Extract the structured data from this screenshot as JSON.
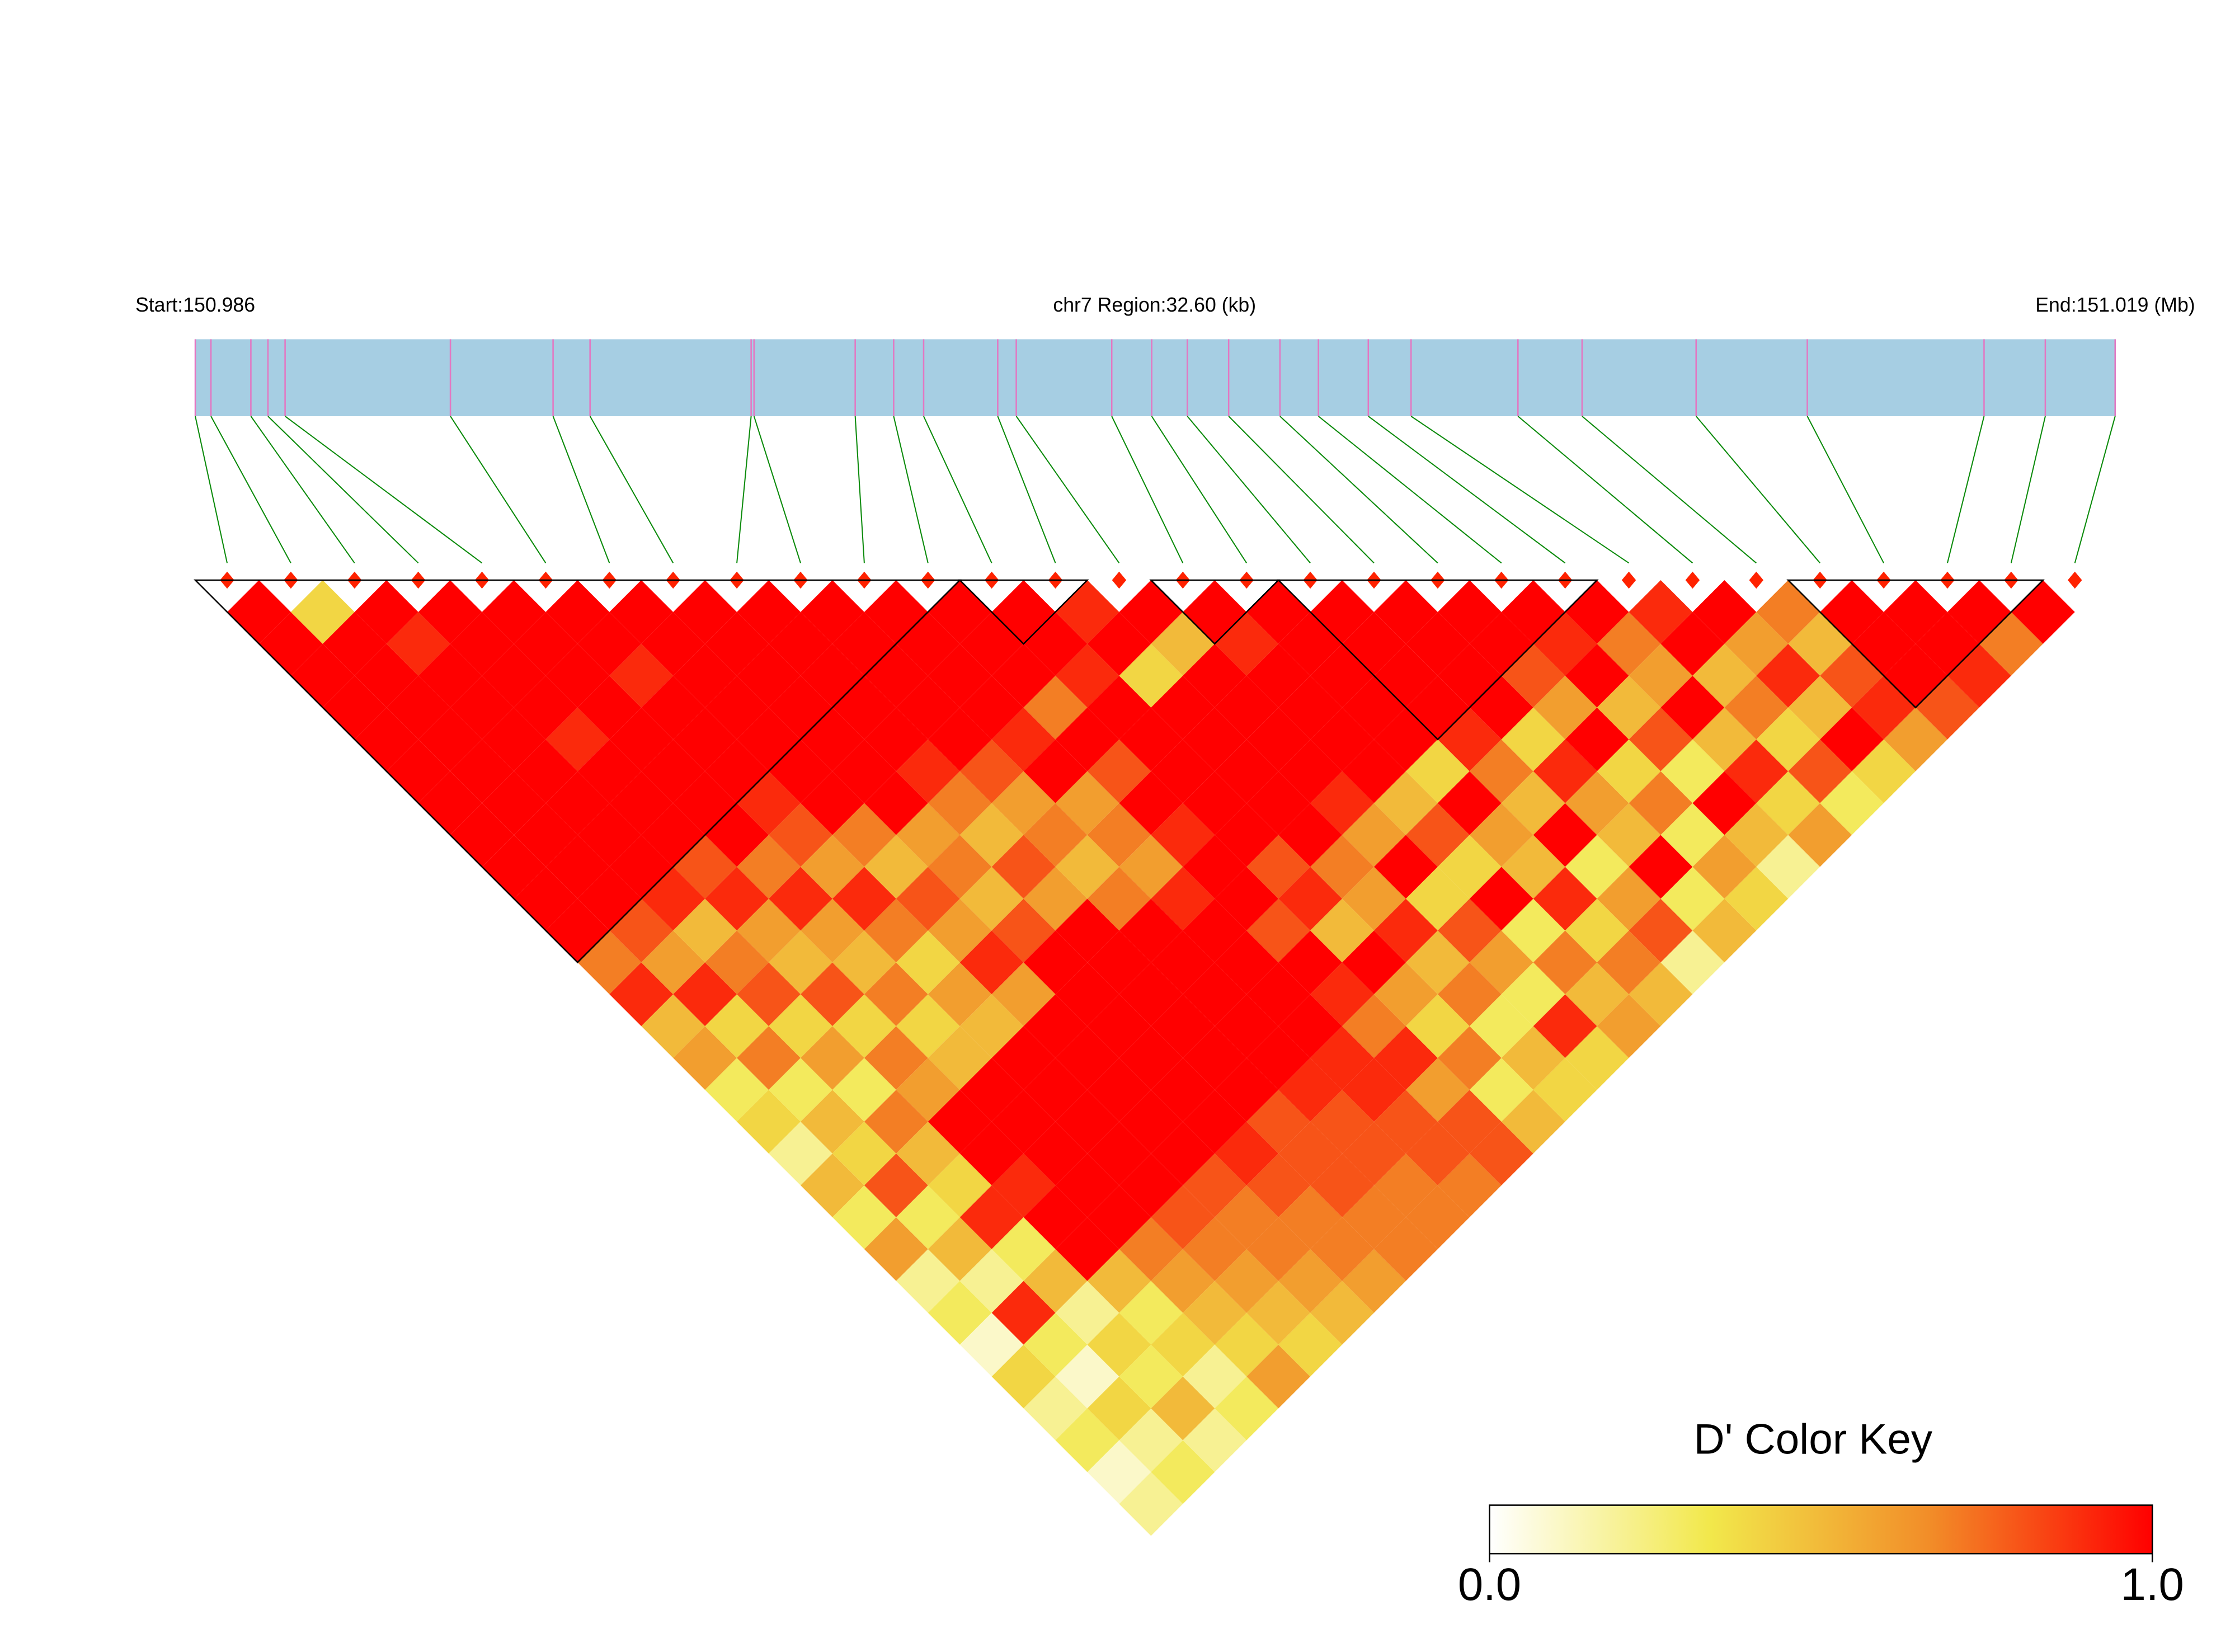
{
  "chart_data": {
    "type": "ld_heatmap",
    "start_label": "Start:150.986",
    "region_label": "chr7 Region:32.60 (kb)",
    "end_label": "End:151.019 (Mb)",
    "xlim": [
      0,
      32.6
    ],
    "positions_kb": [
      0,
      0.266,
      0.944,
      1.234,
      1.525,
      4.332,
      6.075,
      6.703,
      9.438,
      9.487,
      11.205,
      11.858,
      12.367,
      13.625,
      13.94,
      15.561,
      16.239,
      16.844,
      17.546,
      18.417,
      19.07,
      19.917,
      20.643,
      22.458,
      23.547,
      25.483,
      27.371,
      30.372,
      31.412,
      32.598
    ],
    "ld": [
      [
        1,
        1,
        1,
        1,
        1,
        1,
        1,
        1,
        1,
        1,
        1,
        0.7,
        0.9,
        0.5,
        0.6,
        0.3,
        0.4,
        0.2,
        0.5,
        0.3,
        0.6,
        0.2,
        0.3,
        0.1,
        0.4,
        0.2,
        0.3,
        0.1,
        0.2
      ],
      [
        0.4,
        1,
        1,
        1,
        1,
        1,
        1,
        1,
        1,
        1,
        0.8,
        0.6,
        0.9,
        0.4,
        0.7,
        0.3,
        0.5,
        0.4,
        0.8,
        0.3,
        0.5,
        0.2,
        0.9,
        0.3,
        0.1,
        0.4,
        0.2,
        0.3
      ],
      [
        1,
        0.9,
        1,
        1,
        1,
        1,
        1,
        1,
        1,
        0.9,
        0.5,
        0.7,
        0.8,
        0.4,
        0.6,
        0.3,
        0.7,
        0.5,
        0.4,
        0.9,
        0.3,
        0.5,
        0.2,
        0.4,
        0.3,
        0.5,
        0.2
      ],
      [
        1,
        1,
        1,
        1,
        0.9,
        1,
        1,
        1,
        0.8,
        0.9,
        0.6,
        0.5,
        0.8,
        0.4,
        0.7,
        0.6,
        1,
        1,
        0.9,
        1,
        1,
        0.5,
        0.3,
        0.4,
        0.2,
        0.3
      ],
      [
        1,
        1,
        1,
        1,
        1,
        1,
        1,
        1,
        0.7,
        0.9,
        0.6,
        0.5,
        0.7,
        0.4,
        0.5,
        1,
        1,
        1,
        1,
        1,
        0.7,
        0.6,
        0.5,
        0.4,
        0.6
      ],
      [
        1,
        1,
        0.9,
        1,
        1,
        1,
        0.9,
        0.8,
        0.6,
        0.9,
        0.7,
        0.4,
        0.6,
        0.5,
        1,
        1,
        1,
        1,
        1,
        0.8,
        0.7,
        0.6,
        0.5,
        0.4
      ],
      [
        1,
        1,
        1,
        1,
        1,
        1,
        1,
        0.7,
        0.5,
        0.8,
        0.6,
        0.9,
        0.6,
        1,
        1,
        1,
        1,
        1,
        0.8,
        0.7,
        0.7,
        0.6,
        0.5
      ],
      [
        1,
        1,
        1,
        1,
        1,
        1,
        1,
        0.6,
        0.7,
        0.5,
        0.8,
        1,
        1,
        1,
        1,
        1,
        1,
        0.9,
        0.8,
        0.7,
        0.7,
        0.6
      ],
      [
        1,
        1,
        1,
        1,
        1,
        0.9,
        0.7,
        0.5,
        0.8,
        0.6,
        1,
        1,
        1,
        1,
        1,
        1,
        0.8,
        0.8,
        0.8,
        0.7,
        0.7
      ],
      [
        1,
        1,
        1,
        1,
        1,
        0.8,
        0.6,
        0.7,
        0.5,
        0.7,
        1,
        1,
        1,
        1,
        1,
        0.9,
        0.8,
        0.8,
        0.7,
        0.7
      ],
      [
        1,
        1,
        1,
        1,
        0.9,
        1,
        0.6,
        0.7,
        0.6,
        0.9,
        1,
        1,
        1,
        1,
        0.9,
        0.9,
        0.8,
        0.8,
        0.7
      ],
      [
        1,
        1,
        1,
        0.7,
        1,
        0.8,
        1,
        0.9,
        1,
        1,
        0.8,
        1,
        0.9,
        0.7,
        0.9,
        0.6,
        0.8,
        0.8
      ],
      [
        1,
        1,
        0.9,
        1,
        1,
        1,
        1,
        1,
        0.8,
        0.9,
        0.5,
        1,
        0.6,
        0.4,
        0.7,
        0.3,
        0.5
      ],
      [
        0.9,
        1,
        0.4,
        1,
        1,
        1,
        1,
        1,
        0.7,
        0.6,
        0.9,
        0.5,
        0.7,
        0.3,
        0.5,
        0.4
      ],
      [
        1,
        0.5,
        1,
        1,
        1,
        1,
        0.9,
        0.6,
        1,
        0.4,
        0.8,
        0.6,
        0.3,
        0.9,
        0.4
      ],
      [
        1,
        0.9,
        1,
        1,
        1,
        1,
        0.5,
        0.8,
        0.4,
        1,
        0.3,
        0.7,
        0.5,
        0.6
      ],
      [
        1,
        1,
        1,
        1,
        1,
        0.4,
        1,
        0.6,
        0.5,
        0.9,
        0.4,
        0.7,
        0.5
      ],
      [
        1,
        1,
        1,
        1,
        0.9,
        0.7,
        0.5,
        1,
        0.3,
        0.6,
        0.8,
        0.2
      ],
      [
        1,
        1,
        1,
        1,
        0.4,
        0.9,
        0.6,
        0.5,
        1,
        0.3,
        0.5
      ],
      [
        1,
        1,
        0.8,
        0.6,
        1,
        0.4,
        0.7,
        0.3,
        0.6,
        0.4
      ],
      [
        1,
        0.9,
        1,
        0.5,
        0.8,
        0.3,
        1,
        0.5,
        0.2
      ],
      [
        1,
        0.7,
        0.6,
        1,
        0.5,
        0.9,
        0.4,
        0.6
      ],
      [
        0.9,
        1,
        0.5,
        0.7,
        0.4,
        0.8,
        0.3
      ],
      [
        1,
        0.6,
        0.9,
        0.5,
        1,
        0.4
      ],
      [
        0.7,
        0.5,
        0.8,
        0.9,
        0.6
      ],
      [
        1,
        1,
        1,
        0.8
      ],
      [
        1,
        1,
        0.9
      ],
      [
        1,
        0.7
      ],
      [
        1
      ]
    ],
    "blocks": [
      [
        0,
        11
      ],
      [
        12,
        13
      ],
      [
        15,
        16
      ],
      [
        17,
        21
      ],
      [
        25,
        28
      ]
    ],
    "colorscale": [
      "#ffffff",
      "#f2e84b",
      "#f28c28",
      "#ff0000"
    ],
    "key_title": "D' Color Key",
    "key_ticks": [
      {
        "value": 0,
        "label": "0.0"
      },
      {
        "value": 1,
        "label": "1.0"
      }
    ]
  }
}
